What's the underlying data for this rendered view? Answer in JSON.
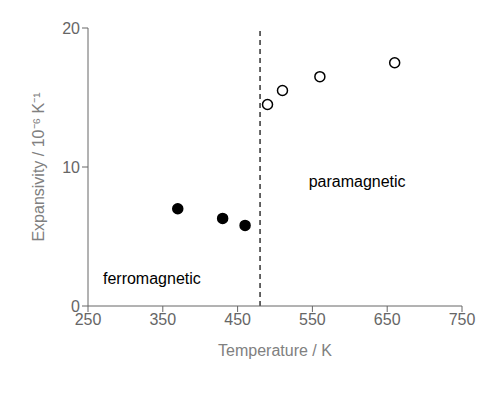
{
  "chart_data": {
    "type": "scatter",
    "xlabel": "Temperature / K",
    "ylabel": "Expansivity / 10⁻⁶ K⁻¹",
    "series": [
      {
        "color": "black",
        "marker": "filled_circle",
        "x": [
          370,
          430,
          460
        ],
        "values": [
          7.0,
          6.3,
          5.8
        ]
      },
      {
        "color": "black",
        "marker": "open_circle",
        "x": [
          490,
          510,
          560,
          660
        ],
        "values": [
          14.5,
          15.5,
          16.5,
          17.5
        ]
      }
    ],
    "reference_lines": [
      {
        "x": 480,
        "color": "black",
        "line_style": "dashed"
      }
    ],
    "annotations": [
      {
        "text": "ferromagnetic",
        "x": 270,
        "y": 2.0
      },
      {
        "text": "paramagnetic",
        "x": 545,
        "y": 9.0
      }
    ],
    "xlim": [
      250,
      750
    ],
    "xticks": [
      250,
      350,
      450,
      550,
      650,
      750
    ],
    "ylim": [
      0,
      20
    ],
    "yticks": [
      0,
      10,
      20
    ],
    "grid": false
  }
}
